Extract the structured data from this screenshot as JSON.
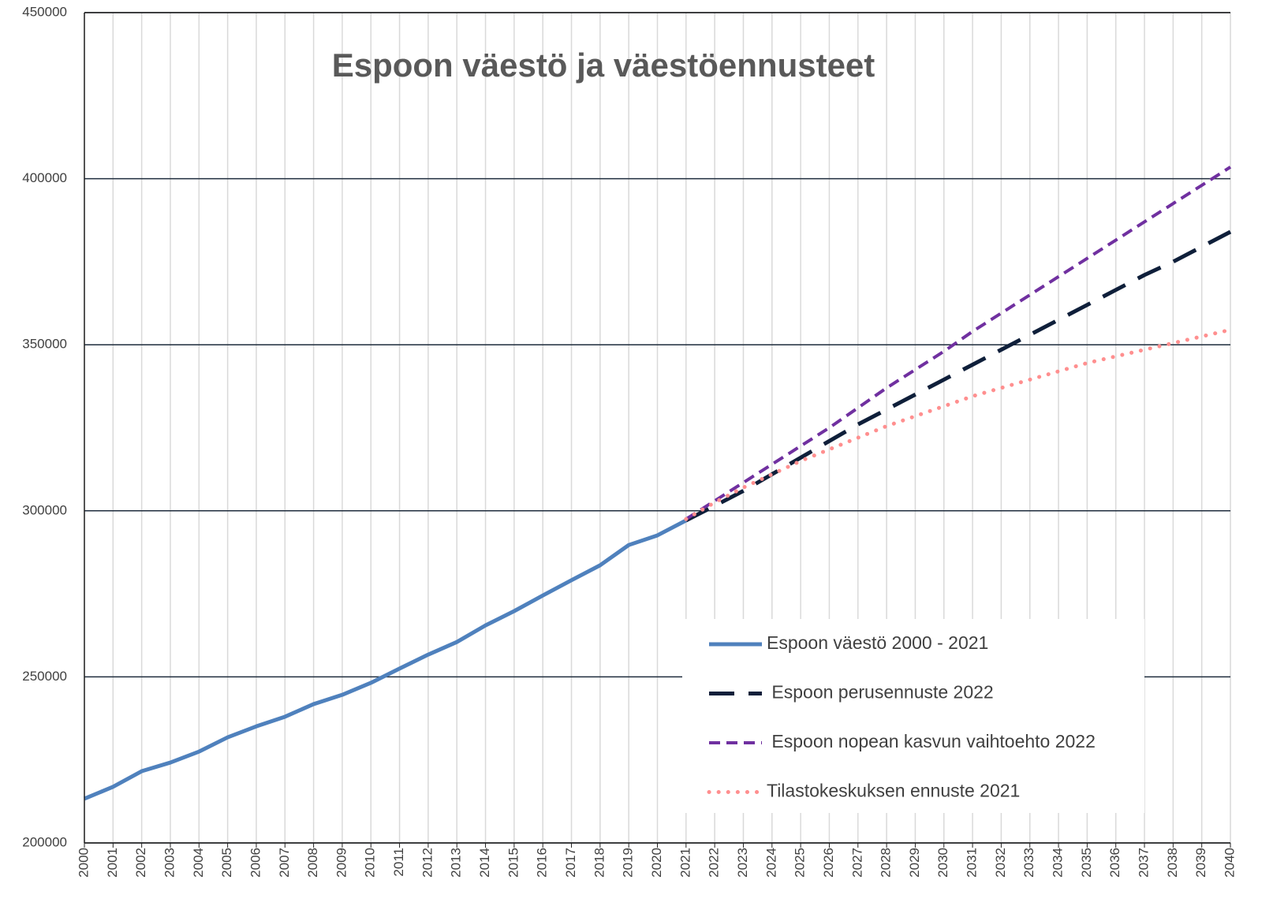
{
  "chart_data": {
    "type": "line",
    "title": "Espoon väestö ja väestöennusteet",
    "categories": [
      "2000",
      "2001",
      "2002",
      "2003",
      "2004",
      "2005",
      "2006",
      "2007",
      "2008",
      "2009",
      "2010",
      "2011",
      "2012",
      "2013",
      "2014",
      "2015",
      "2016",
      "2017",
      "2018",
      "2019",
      "2020",
      "2021",
      "2022",
      "2023",
      "2024",
      "2025",
      "2026",
      "2027",
      "2028",
      "2029",
      "2030",
      "2031",
      "2032",
      "2033",
      "2034",
      "2035",
      "2036",
      "2037",
      "2038",
      "2039",
      "2040"
    ],
    "series": [
      {
        "name": "Espoon väestö 2000 - 2021",
        "color": "#4f81bd",
        "style": "solid",
        "values": [
          213300,
          216900,
          221600,
          224200,
          227500,
          231800,
          235100,
          238000,
          241800,
          244600,
          248200,
          252500,
          256700,
          260500,
          265500,
          269800,
          274500,
          279100,
          283600,
          289700,
          292600,
          297100,
          null,
          null,
          null,
          null,
          null,
          null,
          null,
          null,
          null,
          null,
          null,
          null,
          null,
          null,
          null,
          null,
          null,
          null,
          null
        ]
      },
      {
        "name": " Espoon perusennuste 2022",
        "color": "#0f1f3a",
        "style": "long-dash",
        "values": [
          null,
          null,
          null,
          null,
          null,
          null,
          null,
          null,
          null,
          null,
          null,
          null,
          null,
          null,
          null,
          null,
          null,
          null,
          null,
          null,
          null,
          297100,
          301500,
          306000,
          311000,
          316000,
          321000,
          326000,
          330500,
          335000,
          339500,
          344000,
          348500,
          353000,
          357500,
          362000,
          366500,
          371000,
          375000,
          379500,
          384000
        ]
      },
      {
        "name": " Espoon nopean kasvun vaihtoehto 2022",
        "color": "#7030a0",
        "style": "dash",
        "values": [
          null,
          null,
          null,
          null,
          null,
          null,
          null,
          null,
          null,
          null,
          null,
          null,
          null,
          null,
          null,
          null,
          null,
          null,
          null,
          null,
          null,
          297500,
          303000,
          308500,
          314000,
          319500,
          325000,
          331000,
          337000,
          342500,
          348000,
          354000,
          359500,
          365000,
          370500,
          376000,
          381500,
          387000,
          392500,
          398000,
          403500
        ]
      },
      {
        "name": "Tilastokeskuksen ennuste 2021",
        "color": "#ff8f8f",
        "style": "dot",
        "values": [
          null,
          null,
          null,
          null,
          null,
          null,
          null,
          null,
          null,
          null,
          null,
          null,
          null,
          null,
          null,
          null,
          null,
          null,
          null,
          null,
          null,
          297500,
          302500,
          307000,
          311000,
          315000,
          318500,
          322000,
          325500,
          328500,
          331500,
          334500,
          337000,
          339500,
          342000,
          344500,
          346500,
          348500,
          350500,
          352500,
          354500
        ]
      }
    ],
    "ylim": [
      200000,
      450000
    ],
    "yticks": [
      200000,
      250000,
      300000,
      350000,
      400000,
      450000
    ],
    "grid": true
  }
}
